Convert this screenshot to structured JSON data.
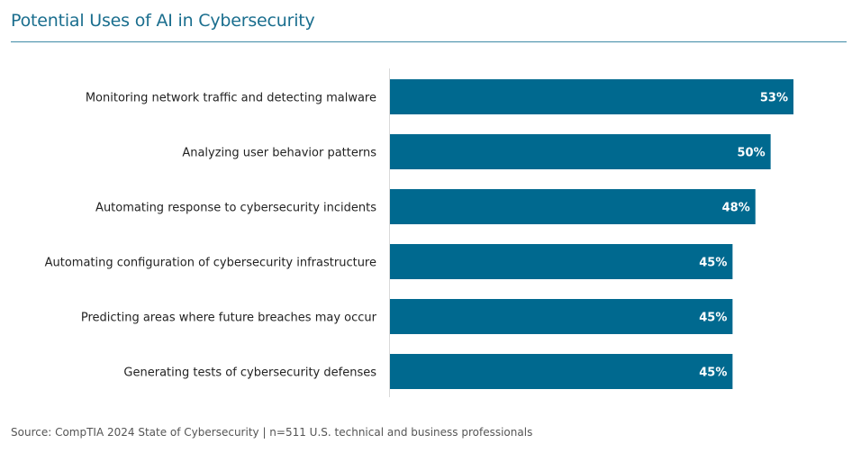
{
  "chart_data": {
    "type": "bar",
    "orientation": "horizontal",
    "title": "Potential Uses of AI in Cybersecurity",
    "categories": [
      "Monitoring network traffic and detecting malware",
      "Analyzing user behavior patterns",
      "Automating response to cybersecurity incidents",
      "Automating configuration of cybersecurity infrastructure",
      "Predicting areas where future breaches may occur",
      "Generating tests of cybersecurity defenses"
    ],
    "values": [
      53,
      50,
      48,
      45,
      45,
      45
    ],
    "value_labels": [
      "53%",
      "50%",
      "48%",
      "45%",
      "45%",
      "45%"
    ],
    "xlim": [
      0,
      60
    ],
    "grid": false,
    "bar_color": "#00698f",
    "source": "Source: CompTIA 2024 State of Cybersecurity | n=511 U.S. technical and business professionals"
  }
}
